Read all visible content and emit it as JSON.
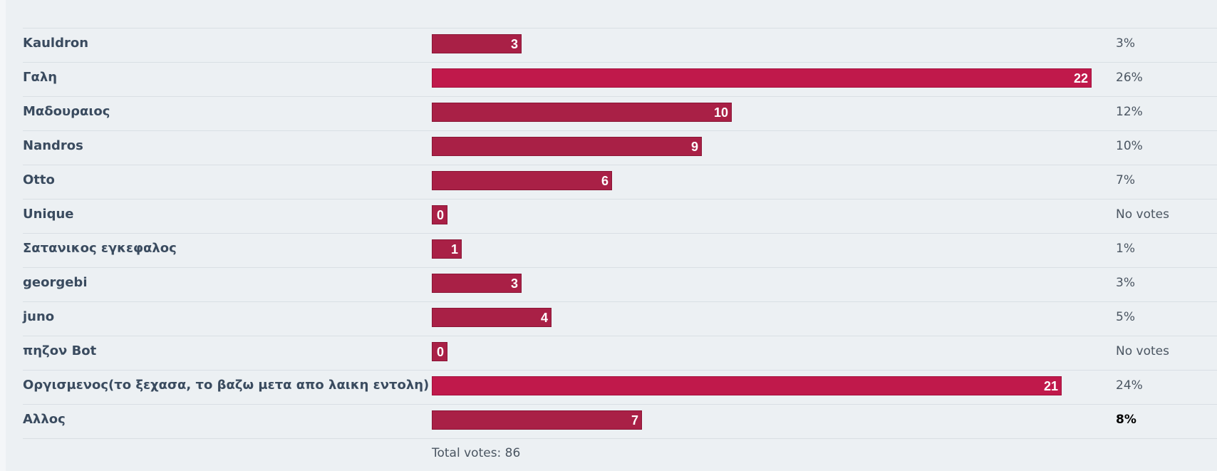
{
  "poll": {
    "options": [
      {
        "label": "Kauldron",
        "votes": 3,
        "percent": "3%"
      },
      {
        "label": "Γαλη",
        "votes": 22,
        "percent": "26%"
      },
      {
        "label": "Μαδουραιος",
        "votes": 10,
        "percent": "12%"
      },
      {
        "label": "Nandros",
        "votes": 9,
        "percent": "10%"
      },
      {
        "label": "Otto",
        "votes": 6,
        "percent": "7%"
      },
      {
        "label": "Unique",
        "votes": 0,
        "percent": "No votes"
      },
      {
        "label": "Σατανικος εγκεφαλος",
        "votes": 1,
        "percent": "1%"
      },
      {
        "label": "georgebi",
        "votes": 3,
        "percent": "3%"
      },
      {
        "label": "juno",
        "votes": 4,
        "percent": "5%"
      },
      {
        "label": "πηζον Bot",
        "votes": 0,
        "percent": "No votes"
      },
      {
        "label": "Οργισμενος(το ξεχασα, το βαζω μετα απο λαικη εντολη)",
        "votes": 21,
        "percent": "24%"
      },
      {
        "label": "Αλλος",
        "votes": 7,
        "percent": "8%",
        "user_vote": true
      }
    ],
    "max_votes": 22,
    "total_label": "Total votes: 86"
  },
  "colors": {
    "bar": "#a92046",
    "bar_top": "#c0194b",
    "background": "#ecf0f3"
  }
}
